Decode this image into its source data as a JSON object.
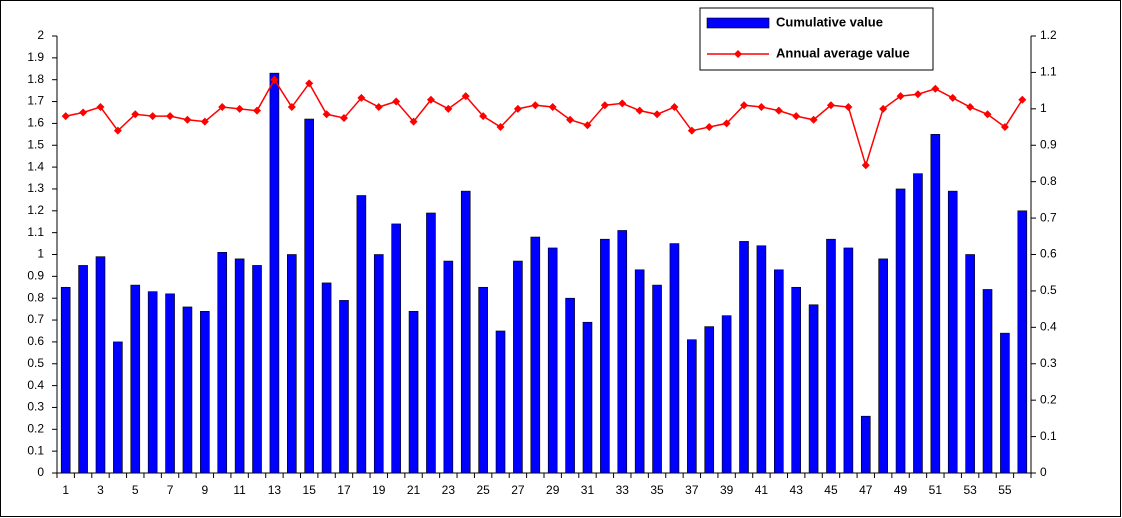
{
  "chart_data": {
    "type": "combo",
    "categories": [
      "1",
      null,
      "3",
      null,
      "5",
      null,
      "7",
      null,
      "9",
      null,
      "11",
      null,
      "13",
      null,
      "15",
      null,
      "17",
      null,
      "19",
      null,
      "21",
      null,
      "23",
      null,
      "25",
      null,
      "27",
      null,
      "29",
      null,
      "31",
      null,
      "33",
      null,
      "35",
      null,
      "37",
      null,
      "39",
      null,
      "41",
      null,
      "43",
      null,
      "45",
      null,
      "47",
      null,
      "49",
      null,
      "51",
      null,
      "53",
      null,
      "55",
      null
    ],
    "series": [
      {
        "name": "Cumulative value",
        "type": "bar",
        "color": "#0000ff",
        "values": [
          0.85,
          0.95,
          0.99,
          0.6,
          0.86,
          0.83,
          0.82,
          0.76,
          0.74,
          1.01,
          0.98,
          0.95,
          1.83,
          1.0,
          1.62,
          0.87,
          0.79,
          1.27,
          1.0,
          1.14,
          0.74,
          1.19,
          0.97,
          1.29,
          0.85,
          0.65,
          0.97,
          1.08,
          1.03,
          0.8,
          0.69,
          1.07,
          1.11,
          0.93,
          0.86,
          1.05,
          0.61,
          0.67,
          0.72,
          1.06,
          1.04,
          0.93,
          0.85,
          0.77,
          1.07,
          1.03,
          0.26,
          0.98,
          1.3,
          1.37,
          1.55,
          1.29,
          1.0,
          0.84,
          0.64,
          1.2
        ]
      },
      {
        "name": "Annual average value",
        "type": "line",
        "axis": "y2",
        "color": "#ff0000",
        "values": [
          0.98,
          0.99,
          1.005,
          0.94,
          0.985,
          0.98,
          0.98,
          0.97,
          0.965,
          1.005,
          1.0,
          0.995,
          1.08,
          1.005,
          1.07,
          0.985,
          0.975,
          1.03,
          1.005,
          1.02,
          0.965,
          1.025,
          1.0,
          1.035,
          0.98,
          0.95,
          1.0,
          1.01,
          1.005,
          0.97,
          0.955,
          1.01,
          1.015,
          0.995,
          0.985,
          1.005,
          0.94,
          0.95,
          0.96,
          1.01,
          1.005,
          0.995,
          0.98,
          0.97,
          1.01,
          1.005,
          0.845,
          1.0,
          1.035,
          1.04,
          1.055,
          1.03,
          1.005,
          0.985,
          0.95,
          1.025
        ]
      }
    ],
    "ylim": [
      0,
      2
    ],
    "yticks": [
      0,
      0.1,
      0.2,
      0.3,
      0.4,
      0.5,
      0.6,
      0.7,
      0.8,
      0.9,
      1,
      1.1,
      1.2,
      1.3,
      1.4,
      1.5,
      1.6,
      1.7,
      1.8,
      1.9,
      2
    ],
    "y2lim": [
      0,
      1.2
    ],
    "y2ticks": [
      0,
      0.1,
      0.2,
      0.3,
      0.4,
      0.5,
      0.6,
      0.7,
      0.8,
      0.9,
      1,
      1.1,
      1.2
    ],
    "grid": false,
    "legend": "top-right"
  }
}
